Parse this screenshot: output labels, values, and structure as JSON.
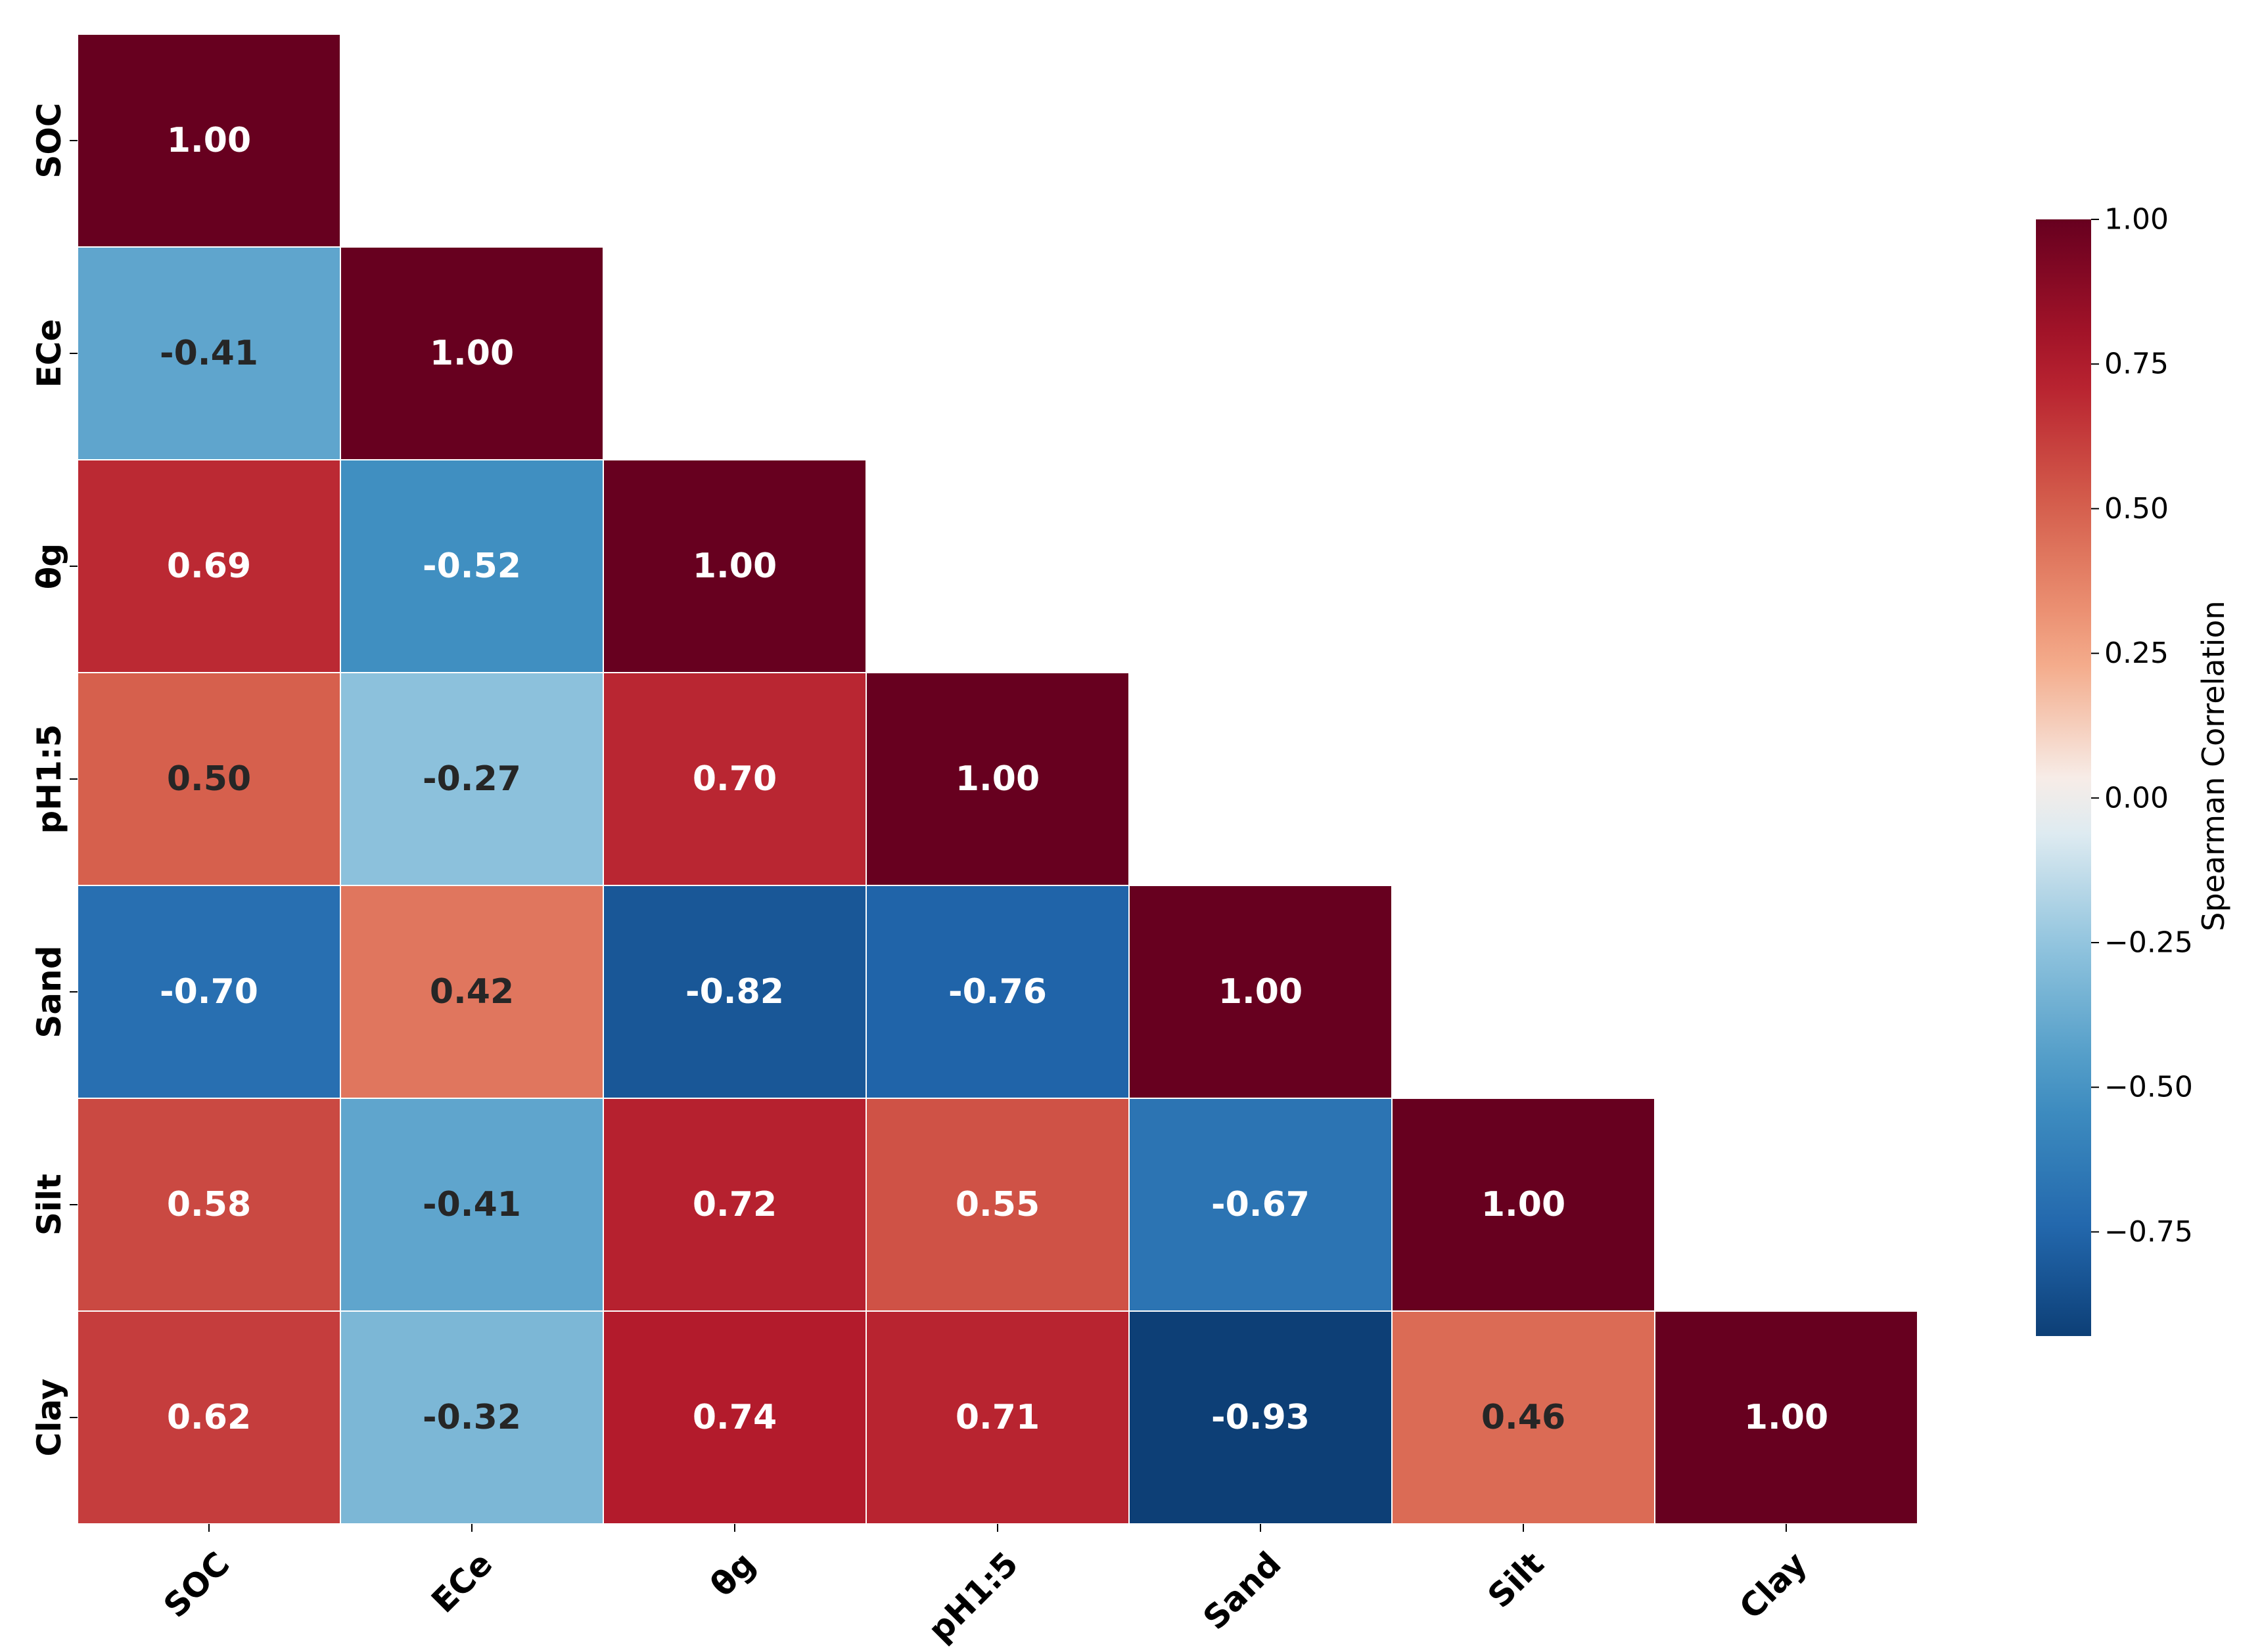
{
  "chart_data": {
    "type": "heatmap",
    "title": "",
    "variables": [
      "SOC",
      "ECe",
      "θg",
      "pH1:5",
      "Sand",
      "Silt",
      "Clay"
    ],
    "matrix_lower": [
      [
        1.0
      ],
      [
        -0.41,
        1.0
      ],
      [
        0.69,
        -0.52,
        1.0
      ],
      [
        0.5,
        -0.27,
        0.7,
        1.0
      ],
      [
        -0.7,
        0.42,
        -0.82,
        -0.76,
        1.0
      ],
      [
        0.58,
        -0.41,
        0.72,
        0.55,
        -0.67,
        1.0
      ],
      [
        0.62,
        -0.32,
        0.74,
        0.71,
        -0.93,
        0.46,
        1.0
      ]
    ],
    "cell_labels": [
      [
        "1.00"
      ],
      [
        "-0.41",
        "1.00"
      ],
      [
        "0.69",
        "-0.52",
        "1.00"
      ],
      [
        "0.50",
        "-0.27",
        "0.70",
        "1.00"
      ],
      [
        "-0.70",
        "0.42",
        "-0.82",
        "-0.76",
        "1.00"
      ],
      [
        "0.58",
        "-0.41",
        "0.72",
        "0.55",
        "-0.67",
        "1.00"
      ],
      [
        "0.62",
        "-0.32",
        "0.74",
        "0.71",
        "-0.93",
        "0.46",
        "1.00"
      ]
    ],
    "mask": "upper-triangle",
    "colormap": "RdBu_r",
    "colorbar": {
      "label": "Spearman Correlation",
      "range": [
        -0.93,
        1.0
      ],
      "ticks": [
        1.0,
        0.75,
        0.5,
        0.25,
        0.0,
        -0.25,
        -0.5,
        -0.75
      ],
      "tick_labels": [
        "1.00",
        "0.75",
        "0.50",
        "0.25",
        "0.00",
        "−0.25",
        "−0.50",
        "−0.75"
      ],
      "placement": "right"
    },
    "text_colors": {
      "light": "#ffffff",
      "dark": "#262626"
    }
  }
}
